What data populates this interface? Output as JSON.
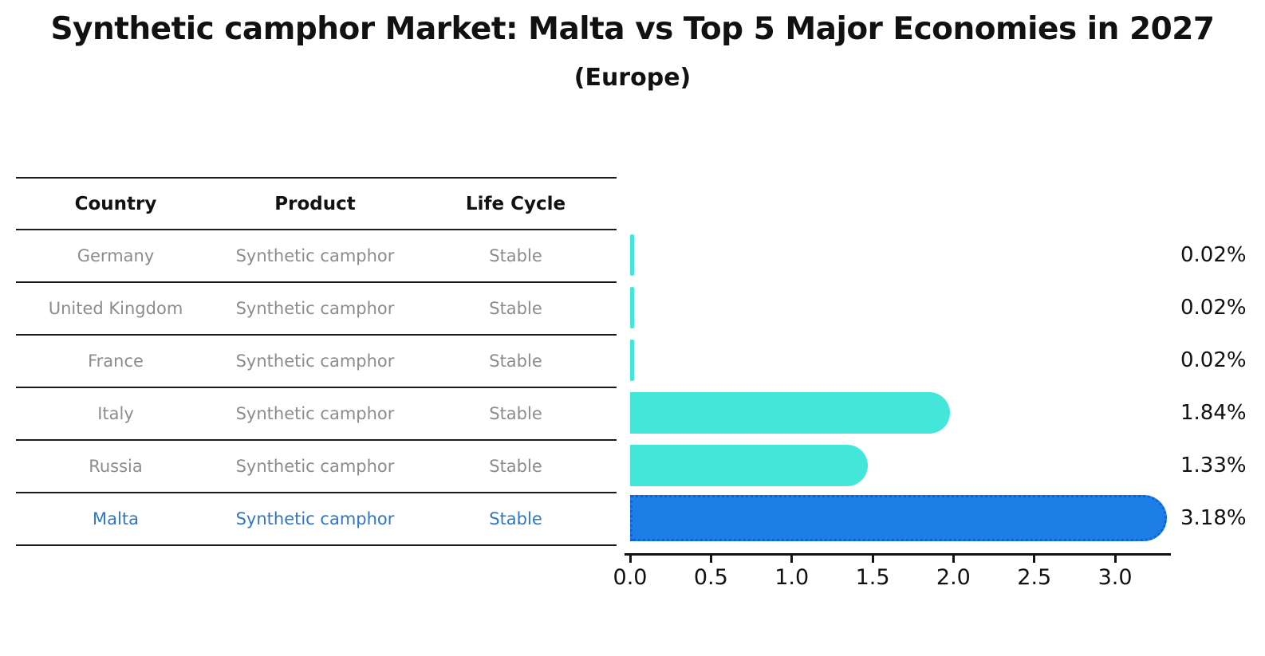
{
  "header": {
    "title": "Synthetic camphor Market: Malta vs Top 5 Major Economies in 2027",
    "subtitle": "(Europe)"
  },
  "table": {
    "columns": [
      "Country",
      "Product",
      "Life Cycle"
    ],
    "rows": [
      {
        "country": "Germany",
        "product": "Synthetic camphor",
        "life_cycle": "Stable"
      },
      {
        "country": "United Kingdom",
        "product": "Synthetic camphor",
        "life_cycle": "Stable"
      },
      {
        "country": "France",
        "product": "Synthetic camphor",
        "life_cycle": "Stable"
      },
      {
        "country": "Italy",
        "product": "Synthetic camphor",
        "life_cycle": "Stable"
      },
      {
        "country": "Russia",
        "product": "Synthetic camphor",
        "life_cycle": "Stable"
      },
      {
        "country": "Malta",
        "product": "Synthetic camphor",
        "life_cycle": "Stable"
      }
    ]
  },
  "chart_data": {
    "type": "bar",
    "orientation": "horizontal",
    "title": "Synthetic camphor Market: Malta vs Top 5 Major Economies in 2027",
    "subtitle": "(Europe)",
    "categories": [
      "Germany",
      "United Kingdom",
      "France",
      "Italy",
      "Russia",
      "Malta"
    ],
    "values": [
      0.02,
      0.02,
      0.02,
      1.84,
      1.33,
      3.18
    ],
    "value_labels": [
      "0.02%",
      "0.02%",
      "0.02%",
      "1.84%",
      "1.33%",
      "3.18%"
    ],
    "x_tick_values": [
      0,
      0.5,
      1.0,
      1.5,
      2.0,
      2.5,
      3.0
    ],
    "x_tick_labels": [
      "0.0",
      "0.5",
      "1.0",
      "1.5",
      "2.0",
      "2.5",
      "3.0"
    ],
    "xlim": [
      0,
      3.35
    ],
    "grid": false,
    "legend": false,
    "bar_colors": [
      "#45e6da",
      "#45e6da",
      "#45e6da",
      "#45e6da",
      "#45e6da",
      "#1e7ee8"
    ],
    "highlight_index": 5,
    "highlight_border_color": "#0f63d4"
  },
  "colors": {
    "background": "#ffffff",
    "table_text": "#8c8c8c",
    "table_header_text": "#111111",
    "highlight_text": "#2e78c2",
    "axis": "#111111",
    "bar_default": "#45e6da",
    "bar_highlight": "#1e7ee8"
  }
}
